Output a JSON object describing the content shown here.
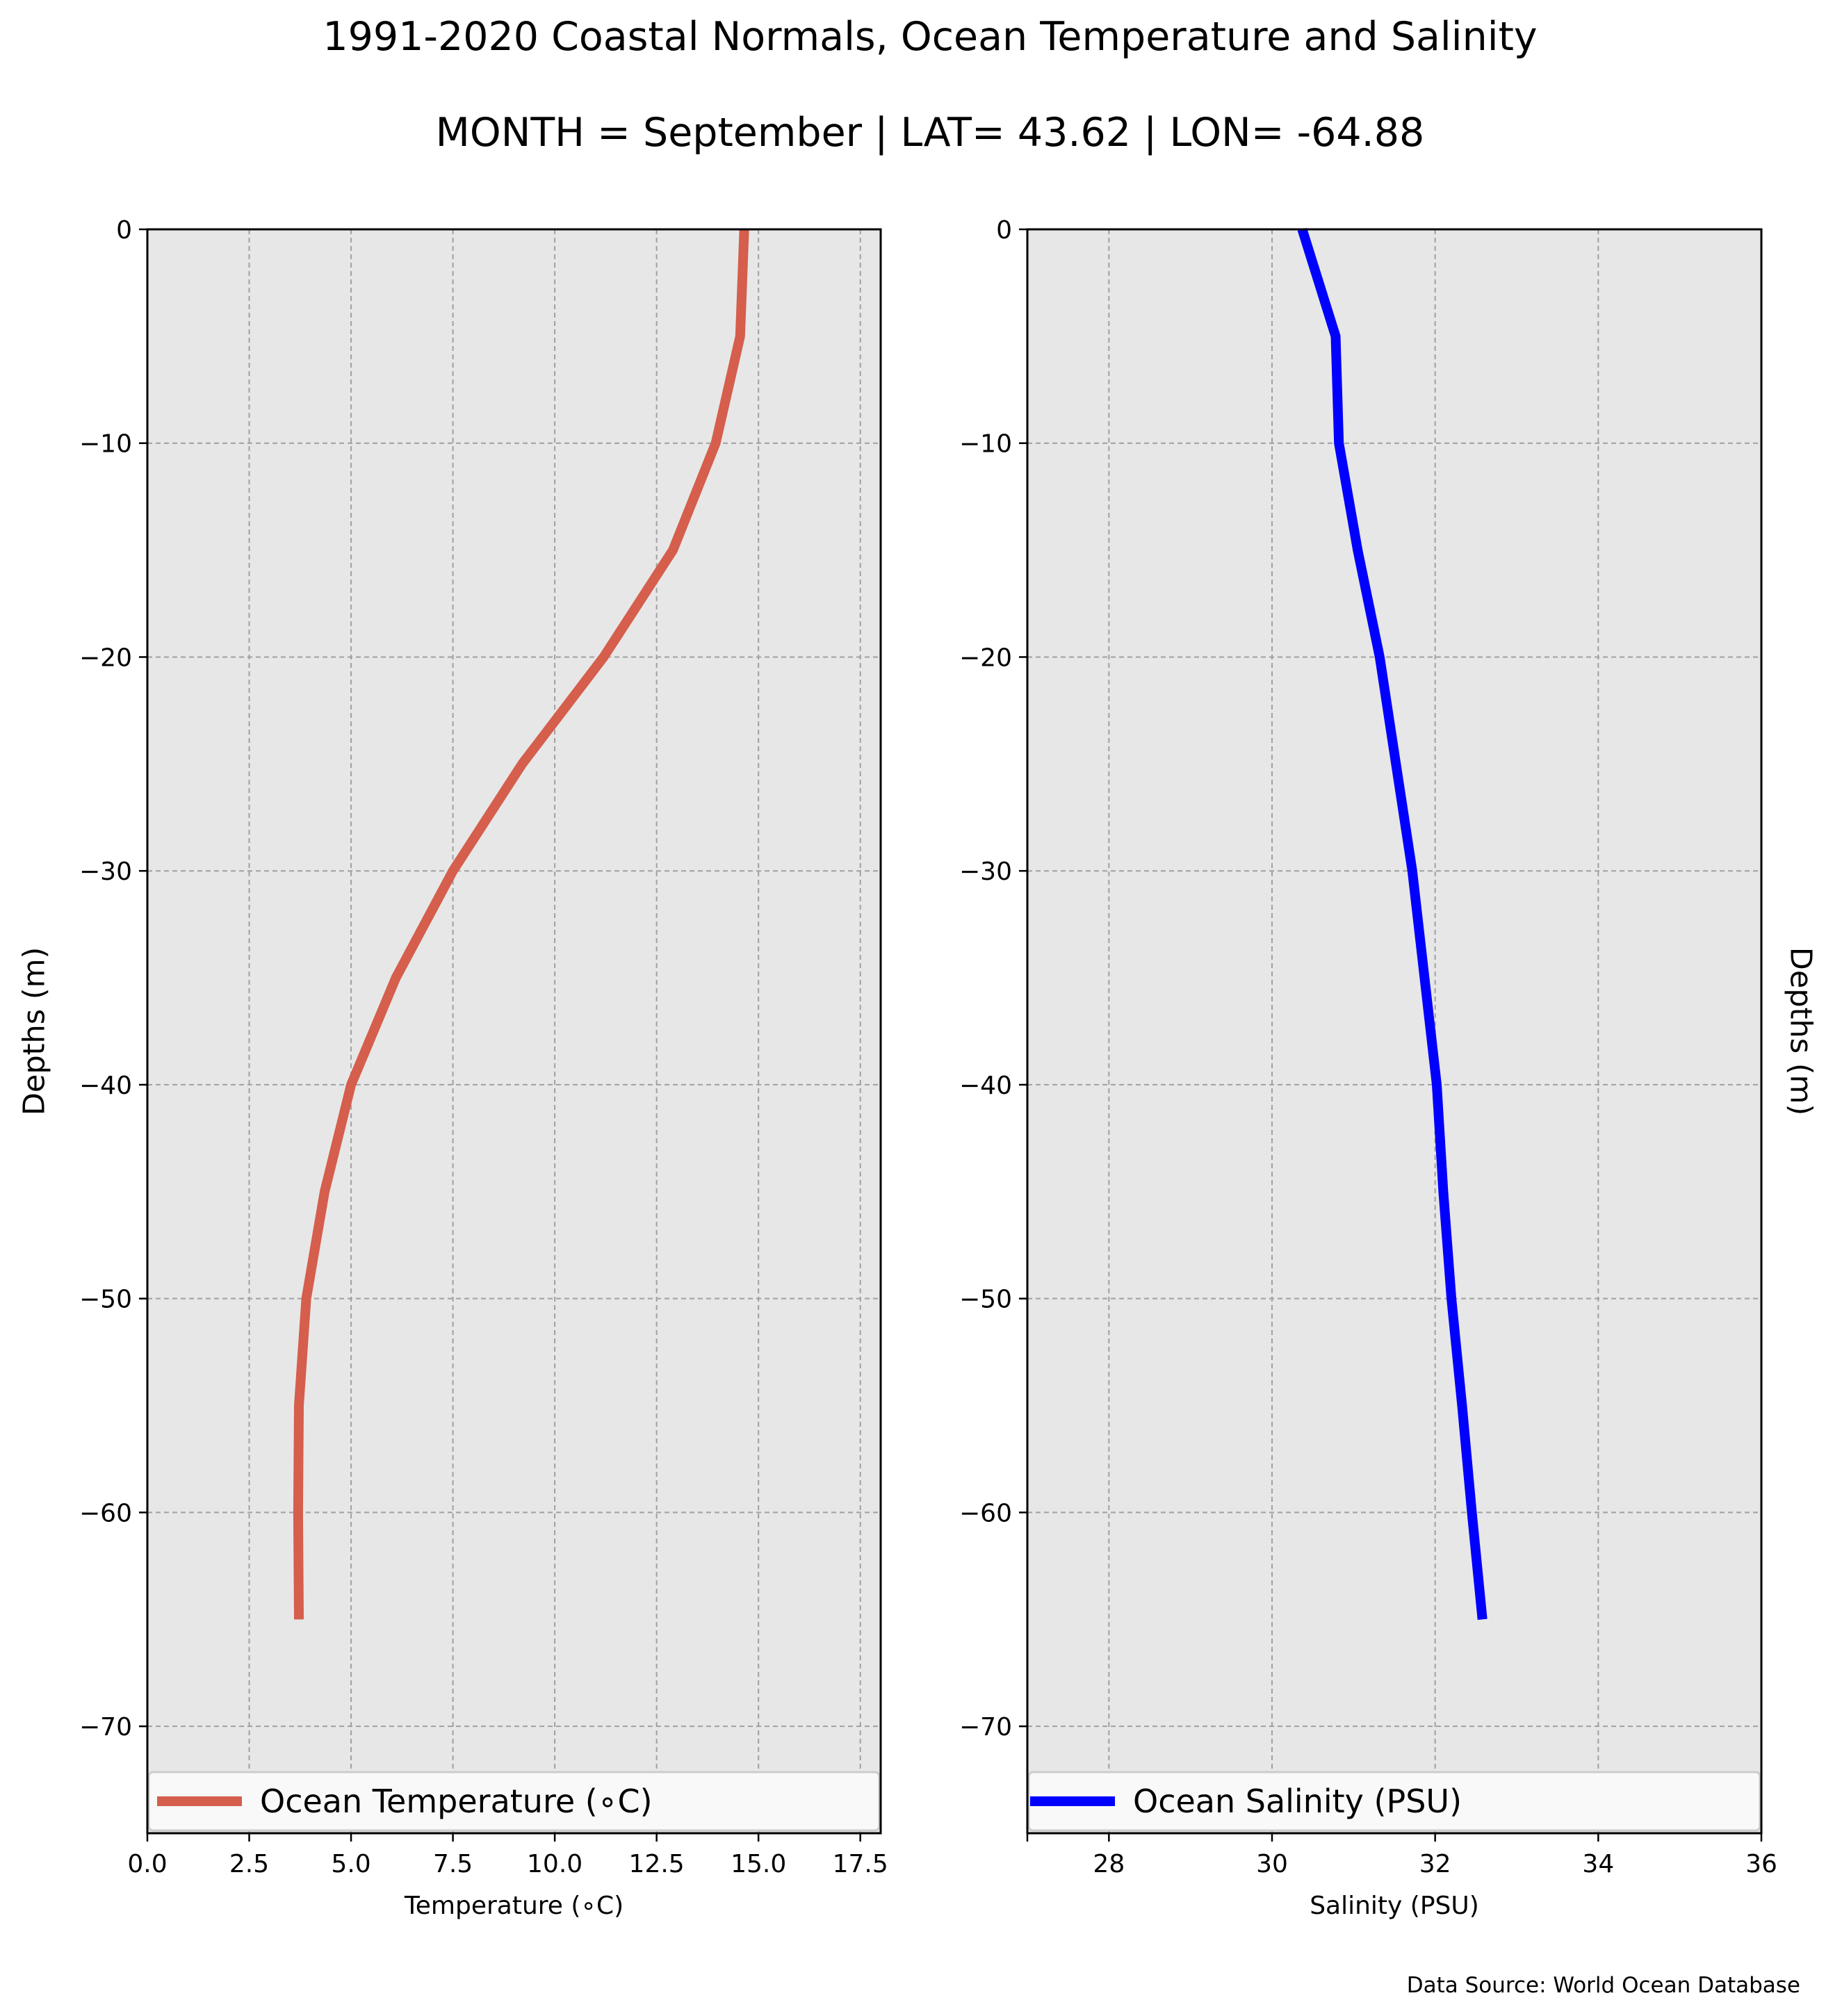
{
  "title": "1991-2020 Coastal Normals, Ocean Temperature and Salinity",
  "subtitle": "MONTH = September | LAT= 43.62 | LON= -64.88",
  "source": "Data Source: World Ocean Database",
  "chart_data": [
    {
      "type": "line",
      "xlabel": "Temperature (∘C)",
      "ylabel": "Depths (m)",
      "xlim": [
        0,
        18
      ],
      "ylim": [
        -75,
        0
      ],
      "xticks": [
        0.0,
        2.5,
        5.0,
        7.5,
        10.0,
        12.5,
        15.0,
        17.5
      ],
      "xtick_labels": [
        "0.0",
        "2.5",
        "5.0",
        "7.5",
        "10.0",
        "12.5",
        "15.0",
        "17.5"
      ],
      "yticks": [
        0,
        -10,
        -20,
        -30,
        -40,
        -50,
        -60,
        -70
      ],
      "ytick_labels": [
        "0",
        "−10",
        "−20",
        "−30",
        "−40",
        "−50",
        "−60",
        "−70"
      ],
      "grid": true,
      "legend": "bottom",
      "series": [
        {
          "name": "Ocean Temperature (∘C)",
          "color": "#d55e4c",
          "x": [
            14.65,
            14.55,
            13.95,
            12.9,
            11.2,
            9.2,
            7.5,
            6.1,
            5.0,
            4.35,
            3.9,
            3.72,
            3.7,
            3.72
          ],
          "y": [
            0,
            -5,
            -10,
            -15,
            -20,
            -25,
            -30,
            -35,
            -40,
            -45,
            -50,
            -55,
            -60,
            -65
          ]
        }
      ]
    },
    {
      "type": "line",
      "xlabel": "Salinity (PSU)",
      "ylabel": "Depths (m)",
      "xlim": [
        27,
        36
      ],
      "ylim": [
        -75,
        0
      ],
      "xticks": [
        28,
        30,
        32,
        34,
        36
      ],
      "xtick_labels": [
        "28",
        "30",
        "32",
        "34",
        "36"
      ],
      "yticks": [
        0,
        -10,
        -20,
        -30,
        -40,
        -50,
        -60,
        -70
      ],
      "ytick_labels": [
        "0",
        "−10",
        "−20",
        "−30",
        "−40",
        "−50",
        "−60",
        "−70"
      ],
      "grid": true,
      "legend": "bottom",
      "series": [
        {
          "name": "Ocean Salinity (PSU)",
          "color": "#0000ff",
          "x": [
            30.37,
            30.78,
            30.82,
            31.05,
            31.32,
            31.52,
            31.72,
            31.87,
            32.02,
            32.1,
            32.2,
            32.33,
            32.45,
            32.58
          ],
          "y": [
            0,
            -5,
            -10,
            -15,
            -20,
            -25,
            -30,
            -35,
            -40,
            -45,
            -50,
            -55,
            -60,
            -65
          ]
        }
      ]
    }
  ]
}
